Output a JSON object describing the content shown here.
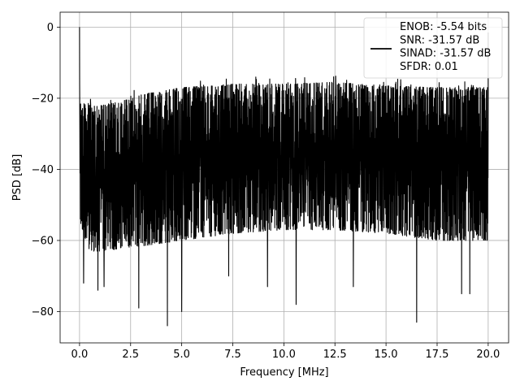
{
  "chart_data": {
    "type": "line",
    "title": "",
    "xlabel": "Frequency [MHz]",
    "ylabel": "PSD [dB]",
    "xlim": [
      -0.95,
      21.0
    ],
    "ylim": [
      -88.8,
      4.2
    ],
    "xticks": [
      0.0,
      2.5,
      5.0,
      7.5,
      10.0,
      12.5,
      15.0,
      17.5,
      20.0
    ],
    "xtick_labels": [
      "0.0",
      "2.5",
      "5.0",
      "7.5",
      "10.0",
      "12.5",
      "15.0",
      "17.5",
      "20.0"
    ],
    "yticks": [
      0,
      -20,
      -40,
      -60,
      -80
    ],
    "ytick_labels": [
      "0",
      "−20",
      "−40",
      "−60",
      "−80"
    ],
    "grid": true,
    "legend_position": "top-right",
    "series_color": "#000000",
    "series": [
      {
        "name": "ENOB: -5.54 bits\nSNR: -31.57 dB\nSINAD: -31.57 dB\nSFDR: 0.01",
        "x_start": 0.0,
        "x_end": 20.0,
        "peak": {
          "x": 0.0,
          "y": 0.0
        },
        "upper_envelope": [
          [
            0.0,
            -21
          ],
          [
            0.5,
            -22
          ],
          [
            1.0,
            -22
          ],
          [
            2.0,
            -21
          ],
          [
            3.0,
            -19
          ],
          [
            5.0,
            -17
          ],
          [
            7.5,
            -16
          ],
          [
            10.0,
            -16
          ],
          [
            12.5,
            -15.5
          ],
          [
            15.0,
            -16.5
          ],
          [
            17.5,
            -17
          ],
          [
            20.0,
            -17
          ]
        ],
        "lower_envelope": [
          [
            0.0,
            -55
          ],
          [
            0.5,
            -63
          ],
          [
            1.0,
            -63
          ],
          [
            2.5,
            -62
          ],
          [
            5.0,
            -60
          ],
          [
            7.5,
            -58
          ],
          [
            10.0,
            -57
          ],
          [
            12.5,
            -57
          ],
          [
            15.0,
            -58
          ],
          [
            17.5,
            -60
          ],
          [
            20.0,
            -60
          ]
        ],
        "deep_dips": [
          [
            0.2,
            -72
          ],
          [
            0.9,
            -74
          ],
          [
            1.2,
            -73
          ],
          [
            2.9,
            -79
          ],
          [
            4.3,
            -84
          ],
          [
            5.0,
            -80
          ],
          [
            7.3,
            -70
          ],
          [
            9.2,
            -73
          ],
          [
            10.6,
            -78
          ],
          [
            13.4,
            -73
          ],
          [
            16.5,
            -83
          ],
          [
            18.7,
            -75
          ],
          [
            19.1,
            -75
          ]
        ],
        "noise_floor_mean": -31.57
      }
    ]
  }
}
